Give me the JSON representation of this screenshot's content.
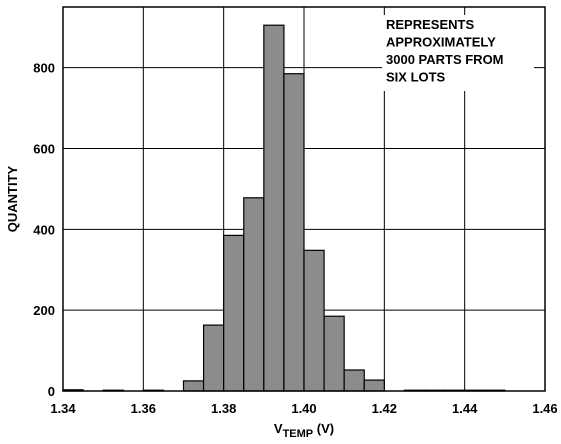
{
  "chart_data": {
    "type": "bar",
    "subtype": "histogram",
    "xlabel": "V",
    "xlabel_subscript": "TEMP",
    "xlabel_unit": " (V)",
    "ylabel": "QUANTITY",
    "xlim": [
      1.34,
      1.46
    ],
    "ylim": [
      0,
      950
    ],
    "x_ticks": [
      "1.34",
      "1.36",
      "1.38",
      "1.40",
      "1.42",
      "1.44",
      "1.46"
    ],
    "y_ticks": [
      "0",
      "200",
      "400",
      "600",
      "800"
    ],
    "grid": true,
    "bin_width": 0.005,
    "bins": [
      {
        "x0": 1.34,
        "x1": 1.345,
        "value": 3
      },
      {
        "x0": 1.345,
        "x1": 1.35,
        "value": 0
      },
      {
        "x0": 1.35,
        "x1": 1.355,
        "value": 2
      },
      {
        "x0": 1.355,
        "x1": 1.36,
        "value": 0
      },
      {
        "x0": 1.36,
        "x1": 1.365,
        "value": 2
      },
      {
        "x0": 1.365,
        "x1": 1.37,
        "value": 0
      },
      {
        "x0": 1.37,
        "x1": 1.375,
        "value": 25
      },
      {
        "x0": 1.375,
        "x1": 1.38,
        "value": 163
      },
      {
        "x0": 1.38,
        "x1": 1.385,
        "value": 385
      },
      {
        "x0": 1.385,
        "x1": 1.39,
        "value": 478
      },
      {
        "x0": 1.39,
        "x1": 1.395,
        "value": 905
      },
      {
        "x0": 1.395,
        "x1": 1.4,
        "value": 785
      },
      {
        "x0": 1.4,
        "x1": 1.405,
        "value": 348
      },
      {
        "x0": 1.405,
        "x1": 1.41,
        "value": 185
      },
      {
        "x0": 1.41,
        "x1": 1.415,
        "value": 52
      },
      {
        "x0": 1.415,
        "x1": 1.42,
        "value": 27
      },
      {
        "x0": 1.42,
        "x1": 1.425,
        "value": 0
      },
      {
        "x0": 1.425,
        "x1": 1.43,
        "value": 2
      },
      {
        "x0": 1.43,
        "x1": 1.435,
        "value": 2
      },
      {
        "x0": 1.435,
        "x1": 1.44,
        "value": 2
      },
      {
        "x0": 1.44,
        "x1": 1.445,
        "value": 2
      },
      {
        "x0": 1.445,
        "x1": 1.45,
        "value": 2
      }
    ],
    "annotation": [
      "REPRESENTS",
      "APPROXIMATELY",
      "3000 PARTS FROM",
      "SIX LOTS"
    ],
    "bar_color": "#8c8c8c"
  }
}
